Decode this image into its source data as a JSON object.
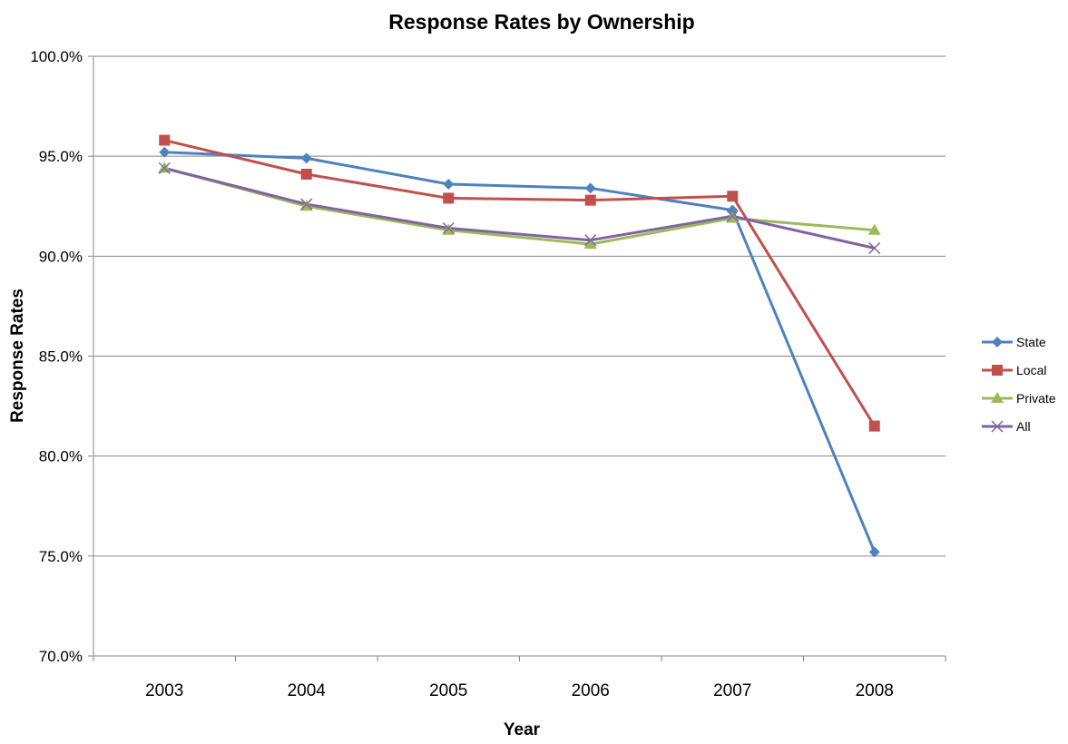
{
  "chart_data": {
    "type": "line",
    "title": "Response Rates by Ownership",
    "xlabel": "Year",
    "ylabel": "Response Rates",
    "categories": [
      "2003",
      "2004",
      "2005",
      "2006",
      "2007",
      "2008"
    ],
    "ylim": [
      70.0,
      100.0
    ],
    "yticks": [
      70.0,
      75.0,
      80.0,
      85.0,
      90.0,
      95.0,
      100.0
    ],
    "ytick_format": "percent_1dp",
    "grid": "horizontal",
    "legend_position": "right",
    "series": [
      {
        "name": "State",
        "color": "#4F81BD",
        "marker": "diamond",
        "values": [
          95.2,
          94.9,
          93.6,
          93.4,
          92.3,
          75.2
        ]
      },
      {
        "name": "Local",
        "color": "#C0504D",
        "marker": "square",
        "values": [
          95.8,
          94.1,
          92.9,
          92.8,
          93.0,
          81.5
        ]
      },
      {
        "name": "Private",
        "color": "#9BBB59",
        "marker": "triangle",
        "values": [
          94.4,
          92.5,
          91.3,
          90.6,
          91.9,
          91.3
        ]
      },
      {
        "name": "All",
        "color": "#8064A2",
        "marker": "x",
        "values": [
          94.4,
          92.6,
          91.4,
          90.8,
          92.0,
          90.4
        ]
      }
    ]
  }
}
